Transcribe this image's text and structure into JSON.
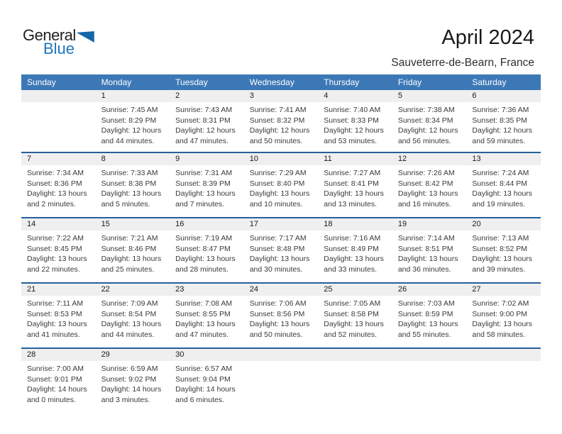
{
  "logo": {
    "word1": "General",
    "word2": "Blue"
  },
  "header": {
    "title": "April 2024",
    "subtitle": "Sauveterre-de-Bearn, France"
  },
  "colors": {
    "header_bar": "#3C78B6",
    "header_text": "#FFFFFF",
    "week_divider": "#27619A",
    "number_band": "#EFEFEF",
    "day_number_text": "#1A1A1A",
    "body_text": "#3A3A3A",
    "title_text": "#1A1A1A",
    "logo_dark": "#231F20",
    "logo_blue": "#1E76BC",
    "logo_triangle": "#1566A7"
  },
  "weekdays": [
    "Sunday",
    "Monday",
    "Tuesday",
    "Wednesday",
    "Thursday",
    "Friday",
    "Saturday"
  ],
  "weeks": [
    [
      {
        "day": ""
      },
      {
        "day": "1",
        "sunrise": "Sunrise: 7:45 AM",
        "sunset": "Sunset: 8:29 PM",
        "daylight": "Daylight: 12 hours and 44 minutes."
      },
      {
        "day": "2",
        "sunrise": "Sunrise: 7:43 AM",
        "sunset": "Sunset: 8:31 PM",
        "daylight": "Daylight: 12 hours and 47 minutes."
      },
      {
        "day": "3",
        "sunrise": "Sunrise: 7:41 AM",
        "sunset": "Sunset: 8:32 PM",
        "daylight": "Daylight: 12 hours and 50 minutes."
      },
      {
        "day": "4",
        "sunrise": "Sunrise: 7:40 AM",
        "sunset": "Sunset: 8:33 PM",
        "daylight": "Daylight: 12 hours and 53 minutes."
      },
      {
        "day": "5",
        "sunrise": "Sunrise: 7:38 AM",
        "sunset": "Sunset: 8:34 PM",
        "daylight": "Daylight: 12 hours and 56 minutes."
      },
      {
        "day": "6",
        "sunrise": "Sunrise: 7:36 AM",
        "sunset": "Sunset: 8:35 PM",
        "daylight": "Daylight: 12 hours and 59 minutes."
      }
    ],
    [
      {
        "day": "7",
        "sunrise": "Sunrise: 7:34 AM",
        "sunset": "Sunset: 8:36 PM",
        "daylight": "Daylight: 13 hours and 2 minutes."
      },
      {
        "day": "8",
        "sunrise": "Sunrise: 7:33 AM",
        "sunset": "Sunset: 8:38 PM",
        "daylight": "Daylight: 13 hours and 5 minutes."
      },
      {
        "day": "9",
        "sunrise": "Sunrise: 7:31 AM",
        "sunset": "Sunset: 8:39 PM",
        "daylight": "Daylight: 13 hours and 7 minutes."
      },
      {
        "day": "10",
        "sunrise": "Sunrise: 7:29 AM",
        "sunset": "Sunset: 8:40 PM",
        "daylight": "Daylight: 13 hours and 10 minutes."
      },
      {
        "day": "11",
        "sunrise": "Sunrise: 7:27 AM",
        "sunset": "Sunset: 8:41 PM",
        "daylight": "Daylight: 13 hours and 13 minutes."
      },
      {
        "day": "12",
        "sunrise": "Sunrise: 7:26 AM",
        "sunset": "Sunset: 8:42 PM",
        "daylight": "Daylight: 13 hours and 16 minutes."
      },
      {
        "day": "13",
        "sunrise": "Sunrise: 7:24 AM",
        "sunset": "Sunset: 8:44 PM",
        "daylight": "Daylight: 13 hours and 19 minutes."
      }
    ],
    [
      {
        "day": "14",
        "sunrise": "Sunrise: 7:22 AM",
        "sunset": "Sunset: 8:45 PM",
        "daylight": "Daylight: 13 hours and 22 minutes."
      },
      {
        "day": "15",
        "sunrise": "Sunrise: 7:21 AM",
        "sunset": "Sunset: 8:46 PM",
        "daylight": "Daylight: 13 hours and 25 minutes."
      },
      {
        "day": "16",
        "sunrise": "Sunrise: 7:19 AM",
        "sunset": "Sunset: 8:47 PM",
        "daylight": "Daylight: 13 hours and 28 minutes."
      },
      {
        "day": "17",
        "sunrise": "Sunrise: 7:17 AM",
        "sunset": "Sunset: 8:48 PM",
        "daylight": "Daylight: 13 hours and 30 minutes."
      },
      {
        "day": "18",
        "sunrise": "Sunrise: 7:16 AM",
        "sunset": "Sunset: 8:49 PM",
        "daylight": "Daylight: 13 hours and 33 minutes."
      },
      {
        "day": "19",
        "sunrise": "Sunrise: 7:14 AM",
        "sunset": "Sunset: 8:51 PM",
        "daylight": "Daylight: 13 hours and 36 minutes."
      },
      {
        "day": "20",
        "sunrise": "Sunrise: 7:13 AM",
        "sunset": "Sunset: 8:52 PM",
        "daylight": "Daylight: 13 hours and 39 minutes."
      }
    ],
    [
      {
        "day": "21",
        "sunrise": "Sunrise: 7:11 AM",
        "sunset": "Sunset: 8:53 PM",
        "daylight": "Daylight: 13 hours and 41 minutes."
      },
      {
        "day": "22",
        "sunrise": "Sunrise: 7:09 AM",
        "sunset": "Sunset: 8:54 PM",
        "daylight": "Daylight: 13 hours and 44 minutes."
      },
      {
        "day": "23",
        "sunrise": "Sunrise: 7:08 AM",
        "sunset": "Sunset: 8:55 PM",
        "daylight": "Daylight: 13 hours and 47 minutes."
      },
      {
        "day": "24",
        "sunrise": "Sunrise: 7:06 AM",
        "sunset": "Sunset: 8:56 PM",
        "daylight": "Daylight: 13 hours and 50 minutes."
      },
      {
        "day": "25",
        "sunrise": "Sunrise: 7:05 AM",
        "sunset": "Sunset: 8:58 PM",
        "daylight": "Daylight: 13 hours and 52 minutes."
      },
      {
        "day": "26",
        "sunrise": "Sunrise: 7:03 AM",
        "sunset": "Sunset: 8:59 PM",
        "daylight": "Daylight: 13 hours and 55 minutes."
      },
      {
        "day": "27",
        "sunrise": "Sunrise: 7:02 AM",
        "sunset": "Sunset: 9:00 PM",
        "daylight": "Daylight: 13 hours and 58 minutes."
      }
    ],
    [
      {
        "day": "28",
        "sunrise": "Sunrise: 7:00 AM",
        "sunset": "Sunset: 9:01 PM",
        "daylight": "Daylight: 14 hours and 0 minutes."
      },
      {
        "day": "29",
        "sunrise": "Sunrise: 6:59 AM",
        "sunset": "Sunset: 9:02 PM",
        "daylight": "Daylight: 14 hours and 3 minutes."
      },
      {
        "day": "30",
        "sunrise": "Sunrise: 6:57 AM",
        "sunset": "Sunset: 9:04 PM",
        "daylight": "Daylight: 14 hours and 6 minutes."
      },
      {
        "day": ""
      },
      {
        "day": ""
      },
      {
        "day": ""
      },
      {
        "day": ""
      }
    ]
  ]
}
